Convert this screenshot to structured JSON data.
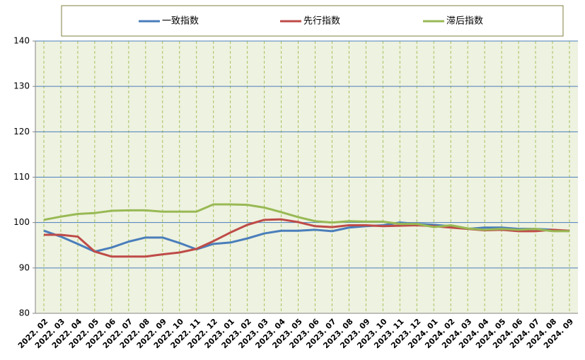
{
  "chart_data": {
    "type": "line",
    "categories": [
      "2022. 02",
      "2022. 03",
      "2022. 04",
      "2022. 05",
      "2022. 06",
      "2022. 07",
      "2022. 08",
      "2022. 09",
      "2022. 10",
      "2022. 11",
      "2022. 12",
      "2023. 01",
      "2023. 02",
      "2023. 03",
      "2023. 04",
      "2023. 05",
      "2023. 06",
      "2023. 07",
      "2023. 08",
      "2023. 09",
      "2023. 10",
      "2023. 11",
      "2023. 12",
      "2024. 01",
      "2024. 02",
      "2024. 03",
      "2024. 04",
      "2024. 05",
      "2024. 06",
      "2024. 07",
      "2024. 08",
      "2024. 09"
    ],
    "series": [
      {
        "name": "一致指数",
        "color": "#4a7ebb",
        "values": [
          98.2,
          96.9,
          95.3,
          93.6,
          94.5,
          95.8,
          96.7,
          96.7,
          95.5,
          94.1,
          95.3,
          95.6,
          96.5,
          97.6,
          98.2,
          98.2,
          98.4,
          98.1,
          98.9,
          99.2,
          99.4,
          100.0,
          99.7,
          99.5,
          99.2,
          98.6,
          98.9,
          98.9,
          98.6,
          98.6,
          98.4,
          98.1
        ]
      },
      {
        "name": "先行指数",
        "color": "#be4b48",
        "values": [
          97.3,
          97.3,
          96.9,
          93.6,
          92.5,
          92.5,
          92.5,
          93.0,
          93.4,
          94.2,
          95.9,
          97.8,
          99.5,
          100.6,
          100.7,
          100.1,
          99.2,
          99.0,
          99.4,
          99.4,
          99.2,
          99.3,
          99.4,
          99.2,
          98.9,
          98.6,
          98.3,
          98.4,
          98.1,
          98.1,
          98.4,
          98.2
        ]
      },
      {
        "name": "滞后指数",
        "color": "#98b954",
        "values": [
          100.6,
          101.3,
          101.9,
          102.1,
          102.6,
          102.7,
          102.7,
          102.4,
          102.4,
          102.4,
          104.0,
          104.0,
          103.9,
          103.3,
          102.3,
          101.2,
          100.3,
          100.0,
          100.3,
          100.2,
          100.2,
          99.7,
          99.7,
          99.0,
          99.4,
          98.7,
          98.4,
          98.6,
          98.4,
          98.6,
          98.1,
          98.1
        ]
      }
    ],
    "ylim": [
      80,
      140
    ],
    "yticks": [
      80,
      90,
      100,
      110,
      120,
      130,
      140
    ],
    "grid": true,
    "legend": "top"
  }
}
